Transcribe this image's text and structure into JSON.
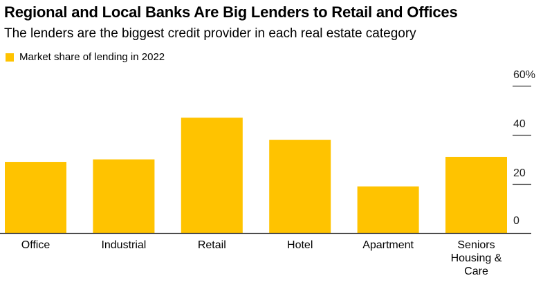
{
  "title": "Regional and Local Banks Are Big Lenders to Retail and Offices",
  "subtitle": "The lenders are the biggest credit provider in each real estate category",
  "colors": {
    "bar": "#FFC300",
    "axis": "#333333",
    "grid": "#333333"
  },
  "chart_data": {
    "type": "bar",
    "legend": [
      "Market share of lending in 2022"
    ],
    "legend_position": "top-left",
    "categories": [
      "Office",
      "Industrial",
      "Retail",
      "Hotel",
      "Apartment",
      "Seniors Housing & Care"
    ],
    "category_lines": [
      [
        "Office"
      ],
      [
        "Industrial"
      ],
      [
        "Retail"
      ],
      [
        "Hotel"
      ],
      [
        "Apartment"
      ],
      [
        "Seniors",
        "Housing &",
        "Care"
      ]
    ],
    "series": [
      {
        "name": "Market share of lending in 2022",
        "values": [
          29,
          30,
          47,
          38,
          19,
          31
        ]
      }
    ],
    "ylim": [
      0,
      60
    ],
    "yticks": [
      0,
      20,
      40,
      60
    ],
    "ytick_labels": [
      "0",
      "20",
      "40",
      "60%"
    ],
    "y_axis_side": "right",
    "grid": false
  }
}
